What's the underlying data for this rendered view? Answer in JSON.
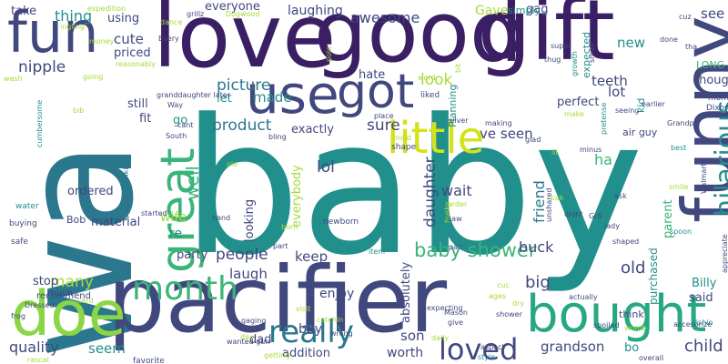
{
  "palette": {
    "purple": "#3b1f64",
    "indigo": "#40487e",
    "blue": "#31638b",
    "steel": "#2a778e",
    "teal": "#21908c",
    "green": "#27a883",
    "sea": "#3ab478",
    "lime": "#8ad647",
    "yellow": "#d5e21a",
    "pale": "#a5db36"
  },
  "words": [
    {
      "text": "baby",
      "color": "teal"
    },
    {
      "text": "wa",
      "color": "steel"
    },
    {
      "text": "love",
      "color": "purple"
    },
    {
      "text": "good",
      "color": "purple"
    },
    {
      "text": "gift",
      "color": "purple"
    },
    {
      "text": "pacifier",
      "color": "indigo"
    },
    {
      "text": "funny",
      "color": "indigo"
    },
    {
      "text": "fun",
      "color": "indigo"
    },
    {
      "text": "bought",
      "color": "green"
    },
    {
      "text": "doe",
      "color": "lime"
    },
    {
      "text": "use",
      "color": "indigo"
    },
    {
      "text": "got",
      "color": "indigo"
    },
    {
      "text": "little",
      "color": "yellow"
    },
    {
      "text": "great",
      "color": "sea"
    },
    {
      "text": "hilarious",
      "color": "teal"
    },
    {
      "text": "really",
      "color": "steel"
    },
    {
      "text": "month",
      "color": "sea"
    },
    {
      "text": "loved",
      "color": "indigo"
    },
    {
      "text": "quality",
      "color": "indigo"
    },
    {
      "text": "child",
      "color": "indigo"
    },
    {
      "text": "baby shower",
      "color": "sea"
    },
    {
      "text": "product",
      "color": "steel"
    },
    {
      "text": "picture",
      "color": "steel"
    },
    {
      "text": "awesome",
      "color": "indigo"
    },
    {
      "text": "thing",
      "color": "teal"
    },
    {
      "text": "cute",
      "color": "indigo"
    },
    {
      "text": "nipple",
      "color": "indigo"
    },
    {
      "text": "made",
      "color": "teal"
    },
    {
      "text": "look",
      "color": "pale"
    },
    {
      "text": "sure",
      "color": "indigo"
    },
    {
      "text": "lol",
      "color": "indigo"
    },
    {
      "text": "friend",
      "color": "steel"
    },
    {
      "text": "daughter",
      "color": "indigo"
    },
    {
      "text": "big",
      "color": "indigo"
    },
    {
      "text": "old",
      "color": "indigo"
    },
    {
      "text": "people",
      "color": "indigo"
    },
    {
      "text": "laugh",
      "color": "indigo"
    },
    {
      "text": "son",
      "color": "indigo"
    },
    {
      "text": "grandson",
      "color": "indigo"
    },
    {
      "text": "many",
      "color": "pale"
    },
    {
      "text": "seem",
      "color": "teal"
    },
    {
      "text": "worth",
      "color": "indigo"
    },
    {
      "text": "well",
      "color": "sea"
    },
    {
      "text": "wait",
      "color": "indigo"
    },
    {
      "text": "keep",
      "color": "indigo"
    },
    {
      "text": "ve seen",
      "color": "indigo"
    },
    {
      "text": "exactly",
      "color": "indigo"
    },
    {
      "text": "enjoy",
      "color": "indigo"
    },
    {
      "text": "buy",
      "color": "indigo"
    },
    {
      "text": "bo",
      "color": "teal"
    },
    {
      "text": "new",
      "color": "teal"
    },
    {
      "text": "see",
      "color": "indigo"
    },
    {
      "text": "lot",
      "color": "indigo"
    },
    {
      "text": "teeth",
      "color": "indigo"
    },
    {
      "text": "binky",
      "color": "indigo"
    },
    {
      "text": "Gave",
      "color": "pale"
    },
    {
      "text": "laughing",
      "color": "indigo"
    },
    {
      "text": "everyone",
      "color": "indigo"
    },
    {
      "text": "ha",
      "color": "sea"
    },
    {
      "text": "ordered",
      "color": "indigo"
    },
    {
      "text": "material",
      "color": "indigo"
    },
    {
      "text": "wife",
      "color": "pale"
    },
    {
      "text": "re",
      "color": "teal"
    },
    {
      "text": "go",
      "color": "teal"
    },
    {
      "text": "let",
      "color": "teal"
    },
    {
      "text": "still",
      "color": "indigo"
    },
    {
      "text": "fit",
      "color": "indigo"
    },
    {
      "text": "hate",
      "color": "indigo"
    },
    {
      "text": "party",
      "color": "indigo"
    },
    {
      "text": "stop",
      "color": "indigo"
    },
    {
      "text": "buck",
      "color": "indigo"
    },
    {
      "text": "dad",
      "color": "indigo"
    },
    {
      "text": "addition",
      "color": "indigo"
    },
    {
      "text": "purchased",
      "color": "teal"
    },
    {
      "text": "parent",
      "color": "sea"
    },
    {
      "text": "Billy",
      "color": "teal"
    },
    {
      "text": "said",
      "color": "indigo"
    },
    {
      "text": "take",
      "color": "indigo"
    },
    {
      "text": "using",
      "color": "indigo"
    },
    {
      "text": "priced",
      "color": "indigo"
    },
    {
      "text": "perfect",
      "color": "indigo"
    },
    {
      "text": "thought",
      "color": "indigo"
    },
    {
      "text": "LONG",
      "color": "sea"
    },
    {
      "text": "gag",
      "color": "indigo"
    },
    {
      "text": "looking",
      "color": "indigo"
    },
    {
      "text": "everybody",
      "color": "pale"
    },
    {
      "text": "absolutely",
      "color": "indigo"
    },
    {
      "text": "Bob",
      "color": "indigo"
    },
    {
      "text": "think",
      "color": "indigo"
    },
    {
      "text": "air guy",
      "color": "indigo"
    },
    {
      "text": "simply",
      "color": "teal"
    },
    {
      "text": "kid",
      "color": "teal"
    },
    {
      "text": "mom",
      "color": "indigo"
    },
    {
      "text": "Dixon",
      "color": "indigo"
    },
    {
      "text": "expected",
      "color": "teal"
    },
    {
      "text": "Planning",
      "color": "teal"
    },
    {
      "text": "recommend",
      "color": "indigo"
    },
    {
      "text": "much",
      "color": "indigo"
    },
    {
      "text": "favorite",
      "color": "indigo"
    },
    {
      "text": "newborn",
      "color": "indigo"
    },
    {
      "text": "water",
      "color": "teal"
    },
    {
      "text": "safe",
      "color": "indigo"
    },
    {
      "text": "buying",
      "color": "indigo"
    },
    {
      "text": "shape",
      "color": "indigo"
    },
    {
      "text": "liked",
      "color": "indigo"
    },
    {
      "text": "cant",
      "color": "indigo"
    },
    {
      "text": "Way",
      "color": "indigo"
    },
    {
      "text": "granddaughter later",
      "color": "indigo"
    },
    {
      "text": "expecting",
      "color": "indigo"
    },
    {
      "text": "actually",
      "color": "indigo"
    },
    {
      "text": "shower",
      "color": "indigo"
    },
    {
      "text": "style",
      "color": "teal"
    },
    {
      "text": "aspect",
      "color": "indigo"
    },
    {
      "text": "give",
      "color": "indigo"
    },
    {
      "text": "wrong",
      "color": "indigo"
    },
    {
      "text": "getting",
      "color": "pale"
    },
    {
      "text": "saw",
      "color": "indigo"
    },
    {
      "text": "order",
      "color": "pale"
    },
    {
      "text": "making",
      "color": "indigo"
    },
    {
      "text": "silver",
      "color": "indigo"
    },
    {
      "text": "super",
      "color": "indigo"
    },
    {
      "text": "thug",
      "color": "indigo"
    },
    {
      "text": "seeing",
      "color": "indigo"
    },
    {
      "text": "lady",
      "color": "indigo"
    },
    {
      "text": "shaped",
      "color": "indigo"
    },
    {
      "text": "best",
      "color": "teal"
    },
    {
      "text": "spoon",
      "color": "teal"
    },
    {
      "text": "spoiled",
      "color": "indigo"
    },
    {
      "text": "overall",
      "color": "indigo"
    },
    {
      "text": "Grandpa",
      "color": "indigo"
    },
    {
      "text": "pretense",
      "color": "teal"
    },
    {
      "text": "hand",
      "color": "indigo"
    },
    {
      "text": "part",
      "color": "indigo"
    },
    {
      "text": "born",
      "color": "pale"
    },
    {
      "text": "started",
      "color": "indigo"
    },
    {
      "text": "bling",
      "color": "indigo"
    },
    {
      "text": "place",
      "color": "indigo"
    },
    {
      "text": "Mason",
      "color": "indigo"
    },
    {
      "text": "item",
      "color": "teal"
    },
    {
      "text": "pair",
      "color": "indigo"
    },
    {
      "text": "Adorable binki",
      "color": "steel"
    },
    {
      "text": "cumbersome",
      "color": "teal"
    },
    {
      "text": "South",
      "color": "indigo"
    },
    {
      "text": "gaging",
      "color": "indigo"
    },
    {
      "text": "day",
      "color": "pale"
    },
    {
      "text": "grillz",
      "color": "indigo"
    },
    {
      "text": "going",
      "color": "pale"
    },
    {
      "text": "Every",
      "color": "indigo"
    },
    {
      "text": "fishin",
      "color": "teal"
    },
    {
      "text": "Dressed",
      "color": "indigo"
    },
    {
      "text": "accesorize",
      "color": "indigo"
    },
    {
      "text": "unshared",
      "color": "indigo"
    },
    {
      "text": "glad",
      "color": "indigo"
    },
    {
      "text": "growth",
      "color": "teal"
    },
    {
      "text": "small",
      "color": "indigo"
    },
    {
      "text": "done",
      "color": "indigo"
    },
    {
      "text": "Gr8",
      "color": "indigo"
    },
    {
      "text": "didnt",
      "color": "indigo"
    },
    {
      "text": "ask",
      "color": "indigo"
    },
    {
      "text": "appreciate",
      "color": "indigo"
    },
    {
      "text": "cuz",
      "color": "indigo"
    },
    {
      "text": "tha",
      "color": "indigo"
    },
    {
      "text": "earlier",
      "color": "indigo"
    },
    {
      "text": "minus",
      "color": "indigo"
    },
    {
      "text": "frog",
      "color": "indigo"
    },
    {
      "text": "Walmart",
      "color": "indigo"
    },
    {
      "text": "wanted gun",
      "color": "indigo"
    },
    {
      "text": "dry",
      "color": "pale"
    },
    {
      "text": "womb",
      "color": "pale"
    },
    {
      "text": "catchin",
      "color": "pale"
    },
    {
      "text": "daily",
      "color": "pale"
    },
    {
      "text": "rascal",
      "color": "pale"
    },
    {
      "text": "expedition",
      "color": "pale"
    },
    {
      "text": "ingling",
      "color": "pale"
    },
    {
      "text": "money",
      "color": "pale"
    },
    {
      "text": "reasonably",
      "color": "pale"
    },
    {
      "text": "Dogwood",
      "color": "pale"
    },
    {
      "text": "dance",
      "color": "pale"
    },
    {
      "text": "word",
      "color": "pale"
    },
    {
      "text": "mold",
      "color": "pale"
    },
    {
      "text": "ole",
      "color": "pale"
    },
    {
      "text": "visit",
      "color": "pale"
    },
    {
      "text": "husky",
      "color": "pale"
    },
    {
      "text": "lil",
      "color": "pale"
    },
    {
      "text": "make",
      "color": "pale"
    },
    {
      "text": "bib",
      "color": "pale"
    },
    {
      "text": "wash",
      "color": "pale"
    },
    {
      "text": "card",
      "color": "pale"
    },
    {
      "text": "pole",
      "color": "pale"
    },
    {
      "text": "smile",
      "color": "pale"
    },
    {
      "text": "oak",
      "color": "pale"
    },
    {
      "text": "bit",
      "color": "pale"
    },
    {
      "text": "cuc",
      "color": "pale"
    },
    {
      "text": "ages",
      "color": "pale"
    },
    {
      "text": "bite",
      "color": "pale"
    }
  ]
}
